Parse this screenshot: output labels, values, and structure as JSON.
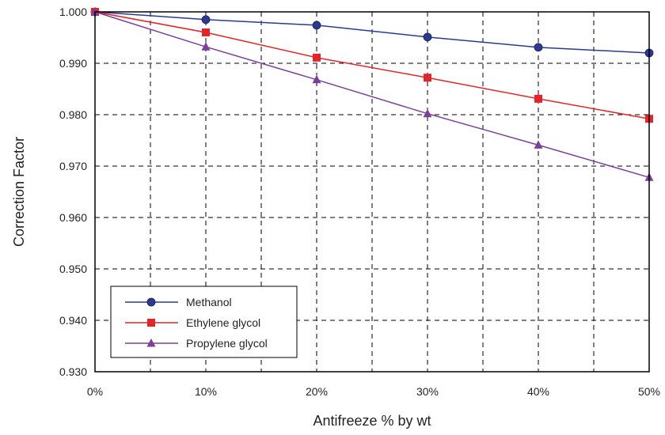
{
  "chart_data": {
    "type": "line",
    "title": "",
    "xlabel": "Antifreeze % by wt",
    "ylabel": "Correction Factor",
    "x": [
      0,
      10,
      20,
      30,
      40,
      50
    ],
    "x_tick_labels": [
      "0%",
      "10%",
      "20%",
      "30%",
      "40%",
      "50%"
    ],
    "xlim": [
      0,
      50
    ],
    "ylim": [
      0.93,
      1.0
    ],
    "y_ticks": [
      0.93,
      0.94,
      0.95,
      0.96,
      0.97,
      0.98,
      0.99,
      1.0
    ],
    "y_tick_labels": [
      "0.930",
      "0.940",
      "0.950",
      "0.960",
      "0.970",
      "0.980",
      "0.990",
      "1.000"
    ],
    "grid": true,
    "grid_style": "dashed",
    "legend_position": "bottom-left",
    "series": [
      {
        "name": "Methanol",
        "values": [
          1.0,
          0.9985,
          0.9974,
          0.9951,
          0.9931,
          0.992
        ],
        "color": "#2b3a8f",
        "marker": "circle"
      },
      {
        "name": "Ethylene glycol",
        "values": [
          1.0,
          0.996,
          0.9911,
          0.9872,
          0.9831,
          0.9792
        ],
        "color": "#e0262b",
        "marker": "square"
      },
      {
        "name": "Propylene glycol",
        "values": [
          1.0,
          0.9932,
          0.9868,
          0.9802,
          0.9741,
          0.9678
        ],
        "color": "#7b3f98",
        "marker": "triangle"
      }
    ]
  }
}
